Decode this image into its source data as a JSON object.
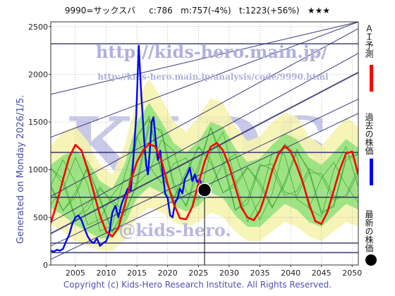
{
  "header": {
    "title": "9990=サックスバ",
    "current": "c:786",
    "median": "m:757(-4%)",
    "target": "t:1223(+56%)",
    "rating": "★★★"
  },
  "watermark": {
    "url": "http://kids-hero.main.jp/",
    "url_path": "http://kids-hero.main.jp/analysis/code/9990.html",
    "email": "@kids-hero.",
    "logo": "KIDS"
  },
  "generated_label": "Generated on Monday 2026/1/5.",
  "copyright": "Copyright (c) Kids-Hero Research Institute. All Rights Reserved.",
  "legend": {
    "ai_forecast": "ＡＩ予測",
    "past_price": "過去の株価",
    "latest_price": "最新の株価"
  },
  "colors": {
    "ai_forecast": "#ff0000",
    "past_price": "#0000ff",
    "latest_price": "#000000",
    "band_fill": "#8fe07a",
    "band_outer": "#f6f3b0",
    "reference_lines": "#2e2e6e"
  },
  "chart_data": {
    "type": "line",
    "xlim": [
      2001,
      2051
    ],
    "ylim": [
      0,
      2550
    ],
    "x_ticks": [
      2005,
      2010,
      2015,
      2020,
      2025,
      2030,
      2035,
      2040,
      2045,
      2050
    ],
    "y_ticks": [
      0,
      500,
      1000,
      1500,
      2000,
      2500
    ],
    "horizontal_levels": [
      130,
      230,
      710,
      1180,
      2320
    ],
    "trend_channel": {
      "x_start": 2001,
      "x_end": 2051,
      "lines": [
        [
          1790,
          2550
        ],
        [
          1340,
          2550
        ],
        [
          720,
          2480
        ],
        [
          450,
          2220
        ],
        [
          330,
          2020
        ],
        [
          200,
          1740
        ],
        [
          60,
          1590
        ]
      ]
    },
    "latest_point": {
      "x": 2026.0,
      "y": 786
    },
    "series": [
      {
        "name": "過去の株価",
        "x": [
          2001.0,
          2001.5,
          2002.0,
          2002.5,
          2003.0,
          2003.5,
          2004.0,
          2004.5,
          2005.0,
          2005.5,
          2006.0,
          2006.5,
          2007.0,
          2007.5,
          2008.0,
          2008.5,
          2009.0,
          2009.5,
          2010.0,
          2010.5,
          2011.0,
          2011.5,
          2012.0,
          2012.5,
          2013.0,
          2013.5,
          2014.0,
          2014.3,
          2014.6,
          2014.9,
          2015.1,
          2015.3,
          2015.5,
          2015.7,
          2015.9,
          2016.2,
          2016.5,
          2016.8,
          2017.1,
          2017.4,
          2017.7,
          2018.0,
          2018.4,
          2018.8,
          2019.2,
          2019.6,
          2020.0,
          2020.4,
          2020.8,
          2021.2,
          2021.6,
          2022.0,
          2022.4,
          2022.8,
          2023.2,
          2023.6,
          2024.0,
          2024.4,
          2024.8,
          2025.2,
          2025.6,
          2026.0
        ],
        "values": [
          150,
          140,
          160,
          150,
          170,
          250,
          320,
          430,
          500,
          520,
          470,
          380,
          300,
          250,
          230,
          280,
          200,
          230,
          250,
          330,
          550,
          620,
          500,
          640,
          720,
          800,
          780,
          1000,
          1280,
          1580,
          1950,
          2300,
          2050,
          1800,
          1600,
          1300,
          1050,
          950,
          1200,
          1500,
          1550,
          1350,
          1100,
          1200,
          950,
          750,
          700,
          520,
          500,
          650,
          700,
          800,
          750,
          900,
          950,
          1020,
          880,
          950,
          870,
          900,
          830,
          786
        ]
      },
      {
        "name": "ＡＩ予測",
        "x": [
          2001,
          2002,
          2003,
          2004,
          2005,
          2006,
          2007,
          2008,
          2009,
          2010,
          2011,
          2012,
          2013,
          2014,
          2015,
          2016,
          2017,
          2018,
          2019,
          2020,
          2021,
          2022,
          2023,
          2024,
          2025,
          2026,
          2027,
          2028,
          2029,
          2030,
          2031,
          2032,
          2033,
          2034,
          2035,
          2036,
          2037,
          2038,
          2039,
          2040,
          2041,
          2042,
          2043,
          2044,
          2045,
          2046,
          2047,
          2048,
          2049,
          2050,
          2051
        ],
        "values": [
          440,
          650,
          900,
          1130,
          1260,
          1200,
          1000,
          760,
          520,
          350,
          300,
          390,
          620,
          880,
          1080,
          1200,
          1270,
          1240,
          1090,
          850,
          640,
          490,
          480,
          610,
          850,
          1080,
          1240,
          1280,
          1200,
          1040,
          820,
          600,
          500,
          470,
          570,
          760,
          990,
          1160,
          1250,
          1190,
          1040,
          860,
          640,
          460,
          430,
          560,
          780,
          1000,
          1170,
          1190,
          950
        ]
      }
    ],
    "bands": {
      "x": [
        2001,
        2003,
        2005,
        2007,
        2009,
        2011,
        2013,
        2015,
        2017,
        2019,
        2021,
        2023,
        2025,
        2027,
        2029,
        2031,
        2033,
        2035,
        2037,
        2039,
        2041,
        2043,
        2045,
        2047,
        2049,
        2051
      ],
      "outer_low": [
        420,
        350,
        250,
        200,
        150,
        150,
        250,
        500,
        600,
        550,
        450,
        400,
        450,
        550,
        500,
        350,
        250,
        250,
        350,
        450,
        400,
        300,
        250,
        350,
        450,
        400
      ],
      "outer_high": [
        1250,
        1400,
        1450,
        1300,
        1050,
        950,
        1250,
        1750,
        1950,
        1750,
        1500,
        1400,
        1550,
        1750,
        1700,
        1450,
        1300,
        1350,
        1500,
        1600,
        1550,
        1350,
        1250,
        1400,
        1550,
        1450
      ],
      "inner_low": [
        600,
        520,
        420,
        350,
        280,
        280,
        420,
        700,
        820,
        760,
        620,
        560,
        620,
        760,
        700,
        520,
        400,
        400,
        520,
        640,
        580,
        450,
        400,
        520,
        640,
        580
      ],
      "inner_high": [
        1050,
        1150,
        1200,
        1100,
        880,
        800,
        1050,
        1500,
        1700,
        1500,
        1280,
        1180,
        1300,
        1500,
        1450,
        1220,
        1080,
        1120,
        1260,
        1380,
        1320,
        1130,
        1050,
        1180,
        1320,
        1230
      ]
    }
  }
}
